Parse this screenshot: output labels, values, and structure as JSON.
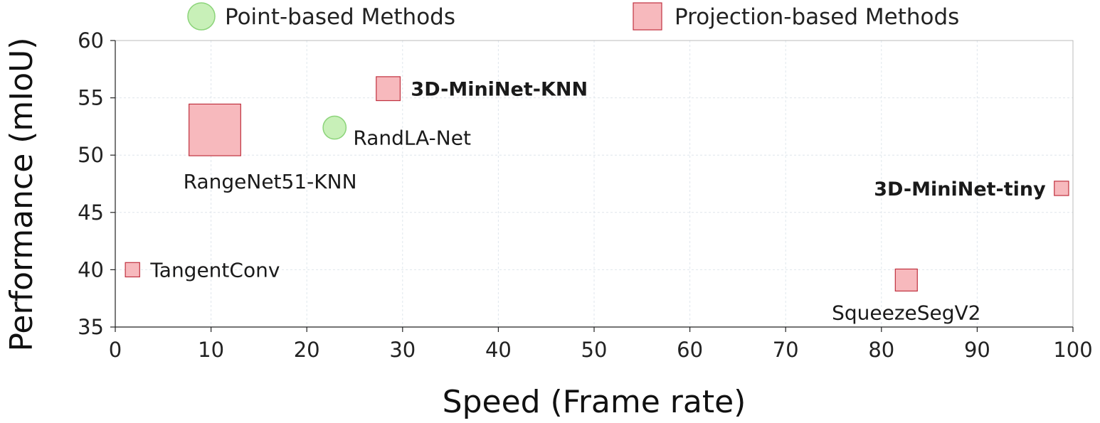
{
  "chart_data": {
    "type": "scatter",
    "xlabel": "Speed (Frame rate)",
    "ylabel": "Performance (mIoU)",
    "xlim": [
      0,
      100
    ],
    "ylim": [
      35,
      60
    ],
    "xticks": [
      "0",
      "10",
      "20",
      "30",
      "40",
      "50",
      "60",
      "70",
      "80",
      "90",
      "100"
    ],
    "yticks": [
      "35",
      "40",
      "45",
      "50",
      "55",
      "60"
    ],
    "grid": true,
    "legend_placement": "top",
    "legend": [
      {
        "name": "Point-based Methods",
        "marker": "circle",
        "fill": "#c8f0b8",
        "stroke": "#8cd47a"
      },
      {
        "name": "Projection-based Methods",
        "marker": "square",
        "fill": "#f7b9bd",
        "stroke": "#c0313f"
      }
    ],
    "points": [
      {
        "label": "RangeNet51-KNN",
        "group": "Projection-based Methods",
        "x": 10.4,
        "y": 52.2,
        "size": 5.4,
        "bold": false,
        "label_pos": "below-left"
      },
      {
        "label": "3D-MiniNet-KNN",
        "group": "Projection-based Methods",
        "x": 28.5,
        "y": 55.8,
        "size": 2.5,
        "bold": true,
        "label_pos": "right"
      },
      {
        "label": "RandLA-Net",
        "group": "Point-based Methods",
        "x": 22.9,
        "y": 52.4,
        "size": 2.4,
        "bold": false,
        "label_pos": "right-below"
      },
      {
        "label": "TangentConv",
        "group": "Projection-based Methods",
        "x": 1.8,
        "y": 40.0,
        "size": 1.5,
        "bold": false,
        "label_pos": "right"
      },
      {
        "label": "3D-MiniNet-tiny",
        "group": "Projection-based Methods",
        "x": 98.8,
        "y": 47.1,
        "size": 1.5,
        "bold": true,
        "label_pos": "left"
      },
      {
        "label": "SqueezeSegV2",
        "group": "Projection-based Methods",
        "x": 82.6,
        "y": 39.1,
        "size": 2.3,
        "bold": false,
        "label_pos": "below"
      }
    ]
  }
}
